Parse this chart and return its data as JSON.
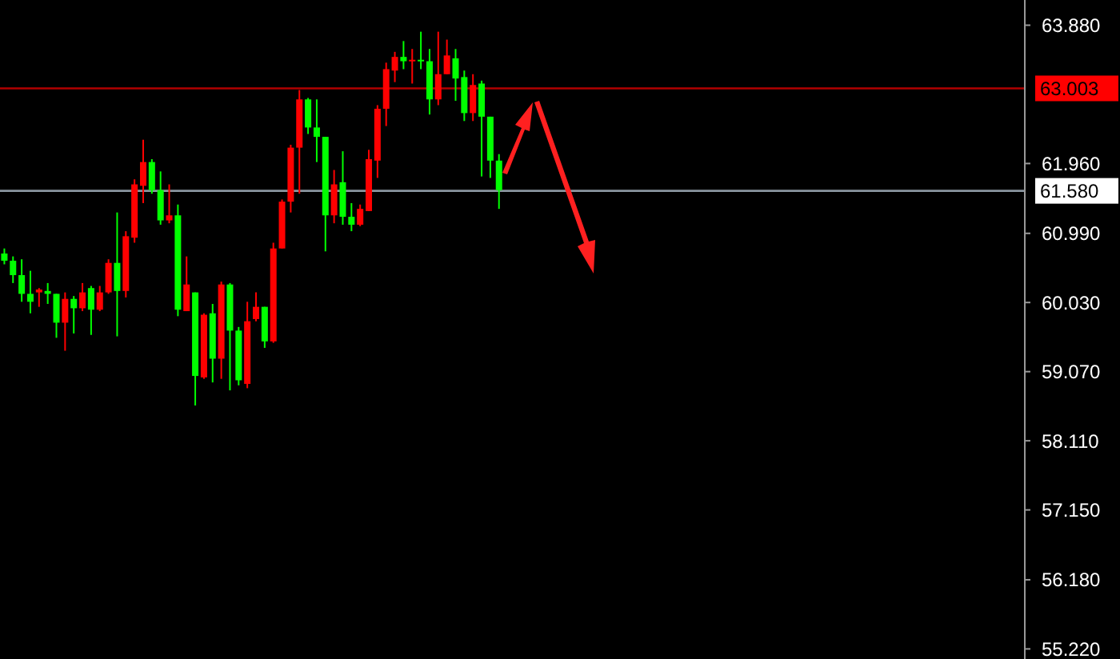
{
  "chart_data": {
    "type": "candlestick",
    "tick_labels": "y",
    "grid": false,
    "categories": [
      null,
      null,
      null,
      null,
      null,
      null,
      null,
      null,
      null,
      null,
      null,
      null,
      null,
      null,
      null,
      null,
      null,
      null,
      null,
      null,
      null,
      null,
      null,
      null,
      null,
      null,
      null,
      null,
      null,
      null,
      null,
      null,
      null,
      null,
      null,
      null,
      null,
      null,
      null,
      null,
      null,
      null,
      null,
      null,
      null,
      null,
      null,
      null,
      null,
      null,
      null,
      null,
      null,
      null,
      null,
      null,
      null,
      null,
      null,
      null,
      null,
      null,
      null,
      null,
      null,
      null,
      null,
      null,
      null,
      null,
      null,
      null,
      null,
      null,
      null,
      null,
      null,
      null,
      null,
      null,
      null,
      null,
      null,
      null,
      null,
      null,
      null,
      null,
      null,
      null,
      null,
      null,
      null,
      null,
      null,
      null,
      null,
      null,
      null,
      null,
      null,
      null,
      null,
      null,
      null,
      null,
      null,
      null,
      null,
      null,
      null,
      null,
      null,
      null,
      null,
      null,
      null,
      null
    ],
    "ohlc": [
      [
        60.71,
        60.78,
        60.56,
        60.61
      ],
      [
        60.61,
        60.67,
        60.3,
        60.41
      ],
      [
        60.41,
        60.63,
        60.04,
        60.15
      ],
      [
        60.15,
        60.47,
        59.88,
        60.04
      ],
      [
        60.17,
        60.23,
        59.97,
        60.21
      ],
      [
        60.19,
        60.3,
        60.01,
        60.15
      ],
      [
        60.15,
        60.15,
        59.54,
        59.75
      ],
      [
        59.75,
        60.17,
        59.36,
        60.08
      ],
      [
        60.08,
        60.12,
        59.6,
        59.95
      ],
      [
        59.95,
        60.3,
        59.91,
        60.17
      ],
      [
        60.23,
        60.26,
        59.58,
        59.93
      ],
      [
        59.93,
        60.26,
        59.91,
        60.17
      ],
      [
        60.17,
        60.63,
        60.15,
        60.58
      ],
      [
        60.58,
        61.28,
        59.56,
        60.19
      ],
      [
        60.19,
        61.02,
        60.1,
        60.95
      ],
      [
        60.93,
        61.74,
        60.86,
        61.67
      ],
      [
        61.65,
        62.29,
        61.41,
        61.98
      ],
      [
        61.98,
        62.02,
        61.54,
        61.59
      ],
      [
        61.59,
        61.85,
        61.11,
        61.17
      ],
      [
        61.17,
        61.67,
        61.13,
        61.24
      ],
      [
        61.24,
        61.39,
        59.84,
        59.93
      ],
      [
        59.91,
        60.67,
        59.91,
        60.28
      ],
      [
        60.17,
        60.17,
        58.6,
        59.01
      ],
      [
        58.99,
        59.88,
        58.97,
        59.86
      ],
      [
        59.88,
        60.01,
        58.92,
        59.25
      ],
      [
        59.25,
        60.32,
        58.97,
        60.28
      ],
      [
        60.28,
        60.3,
        58.81,
        59.64
      ],
      [
        59.64,
        59.69,
        58.88,
        58.95
      ],
      [
        58.9,
        60.04,
        58.84,
        59.77
      ],
      [
        59.8,
        60.17,
        59.77,
        59.97
      ],
      [
        59.97,
        59.97,
        59.4,
        59.49
      ],
      [
        59.49,
        60.86,
        59.47,
        60.78
      ],
      [
        60.78,
        61.46,
        60.78,
        61.43
      ],
      [
        61.43,
        62.22,
        61.28,
        62.18
      ],
      [
        62.18,
        62.98,
        61.54,
        62.85
      ],
      [
        62.85,
        62.87,
        62.37,
        62.46
      ],
      [
        62.46,
        62.85,
        61.98,
        62.33
      ],
      [
        62.33,
        62.33,
        60.74,
        61.24
      ],
      [
        61.24,
        61.87,
        61.13,
        61.67
      ],
      [
        61.7,
        62.13,
        61.11,
        61.22
      ],
      [
        61.22,
        61.41,
        61.02,
        61.11
      ],
      [
        61.11,
        61.39,
        61.09,
        61.33
      ],
      [
        61.3,
        62.15,
        61.3,
        62.02
      ],
      [
        62.0,
        62.77,
        61.76,
        62.72
      ],
      [
        62.72,
        63.36,
        62.48,
        63.27
      ],
      [
        63.25,
        63.51,
        63.09,
        63.44
      ],
      [
        63.44,
        63.66,
        63.27,
        63.38
      ],
      [
        63.38,
        63.55,
        63.07,
        63.4
      ],
      [
        63.4,
        63.79,
        63.27,
        63.38
      ],
      [
        63.38,
        63.55,
        62.64,
        62.85
      ],
      [
        62.85,
        63.79,
        62.77,
        63.2
      ],
      [
        63.2,
        63.68,
        63.2,
        63.46
      ],
      [
        63.42,
        63.55,
        62.83,
        63.14
      ],
      [
        63.16,
        63.25,
        62.55,
        62.66
      ],
      [
        62.66,
        63.2,
        62.55,
        63.05
      ],
      [
        63.07,
        63.11,
        61.78,
        62.61
      ],
      [
        62.61,
        62.61,
        61.76,
        62.0
      ],
      [
        62.0,
        62.09,
        61.33,
        61.59
      ],
      null,
      null,
      null,
      null,
      null,
      null,
      null,
      null,
      null,
      null,
      null,
      null,
      null,
      null,
      null,
      null,
      null,
      null,
      null,
      null,
      null,
      null,
      null,
      null,
      null,
      null,
      null,
      null,
      null,
      null,
      null,
      null,
      null,
      null,
      null,
      null,
      null,
      null,
      null,
      null,
      null,
      null,
      null,
      null,
      null,
      null,
      null,
      null,
      null,
      null,
      null,
      null,
      null,
      null,
      null,
      null,
      null,
      null,
      null,
      null
    ],
    "colors": [
      "#00ff00",
      "#00ff00",
      "#00ff00",
      "#00ff00",
      "#ff0000",
      "#00ff00",
      "#00ff00",
      "#ff0000",
      "#00ff00",
      "#ff0000",
      "#00ff00",
      "#ff0000",
      "#ff0000",
      "#00ff00",
      "#ff0000",
      "#ff0000",
      "#ff0000",
      "#00ff00",
      "#00ff00",
      "#ff0000",
      "#00ff00",
      "#ff0000",
      "#00ff00",
      "#ff0000",
      "#00ff00",
      "#ff0000",
      "#00ff00",
      "#00ff00",
      "#ff0000",
      "#ff0000",
      "#00ff00",
      "#ff0000",
      "#ff0000",
      "#ff0000",
      "#ff0000",
      "#00ff00",
      "#00ff00",
      "#00ff00",
      "#ff0000",
      "#00ff00",
      "#00ff00",
      "#ff0000",
      "#ff0000",
      "#ff0000",
      "#ff0000",
      "#ff0000",
      "#00ff00",
      "#ff0000",
      "#00ff00",
      "#00ff00",
      "#ff0000",
      "#ff0000",
      "#00ff00",
      "#00ff00",
      "#ff0000",
      "#00ff00",
      "#00ff00",
      "#00ff00",
      null,
      null,
      null,
      null,
      null,
      null,
      null,
      null,
      null,
      null,
      null,
      null,
      null,
      null,
      null,
      null,
      null,
      null,
      null,
      null,
      null,
      null,
      null,
      null,
      null,
      null,
      null,
      null,
      null,
      null,
      null,
      null,
      null,
      null,
      null,
      null,
      null,
      null,
      null,
      null,
      null,
      null,
      null,
      null,
      null,
      null,
      null,
      null,
      null,
      null,
      null,
      null,
      null,
      null,
      null,
      null,
      null,
      null,
      null,
      null
    ],
    "ylim": [
      55.08,
      64.23
    ],
    "yticks": [
      {
        "value": 63.88,
        "label": "63.880"
      },
      {
        "value": 61.96,
        "label": "61.960"
      },
      {
        "value": 60.99,
        "label": "60.990"
      },
      {
        "value": 60.03,
        "label": "60.030"
      },
      {
        "value": 59.07,
        "label": "59.070"
      },
      {
        "value": 58.11,
        "label": "58.110"
      },
      {
        "value": 57.15,
        "label": "57.150"
      },
      {
        "value": 56.18,
        "label": "56.180"
      },
      {
        "value": 55.22,
        "label": "55.220"
      }
    ],
    "ref_lines": [
      {
        "axis": "y",
        "value": 63.003,
        "label": "63.003",
        "color": "#b00000"
      },
      {
        "axis": "y",
        "value": 61.58,
        "label": "61.580",
        "color": "#8a96a0"
      }
    ]
  }
}
